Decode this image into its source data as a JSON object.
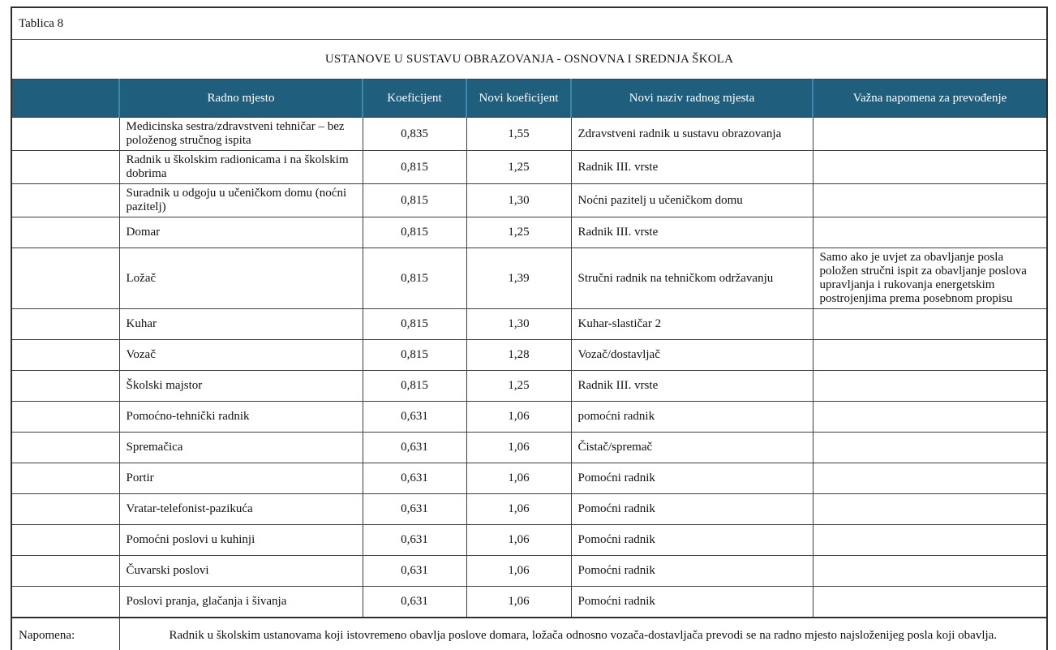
{
  "page": {
    "caption": "Tablica 8",
    "title": "USTANOVE U SUSTAVU OBRAZOVANJA - OSNOVNA I SREDNJA ŠKOLA"
  },
  "colors": {
    "header_bg": "#205e7e",
    "header_divider": "#3f86ad",
    "header_text": "#ffffff",
    "grid_border": "#3e3e3e",
    "outer_border": "#2e2e2e"
  },
  "table": {
    "columns": [
      {
        "key": "rb",
        "label": ""
      },
      {
        "key": "radno-mjesto",
        "label": "Radno mjesto"
      },
      {
        "key": "koeficijent",
        "label": "Koeficijent"
      },
      {
        "key": "novi-koeficijent",
        "label": "Novi koeficijent"
      },
      {
        "key": "novi-naziv",
        "label": "Novi naziv radnog mjesta"
      },
      {
        "key": "vazna-napomena",
        "label": "Važna napomena za prevođenje"
      }
    ],
    "rows": [
      {
        "radno_mjesto": "Medicinska sestra/zdravstveni tehničar – bez položenog stručnog ispita",
        "koeficijent": "0,835",
        "novi_koeficijent": "1,55",
        "novi_naziv": "Zdravstveni radnik u sustavu obrazovanja",
        "napomena": "",
        "naziv_valign": "middle"
      },
      {
        "radno_mjesto": "Radnik u školskim radionicama i na školskim dobrima",
        "koeficijent": "0,815",
        "novi_koeficijent": "1,25",
        "novi_naziv": "Radnik III. vrste",
        "napomena": "",
        "naziv_valign": "bottom"
      },
      {
        "radno_mjesto": "Suradnik u odgoju u učeničkom domu (noćni pazitelj)",
        "koeficijent": "0,815",
        "novi_koeficijent": "1,30",
        "novi_naziv": "Noćni pazitelj u učeničkom domu",
        "napomena": "",
        "naziv_valign": "middle"
      },
      {
        "radno_mjesto": "Domar",
        "koeficijent": "0,815",
        "novi_koeficijent": "1,25",
        "novi_naziv": "Radnik III. vrste",
        "napomena": "",
        "naziv_valign": "bottom"
      },
      {
        "radno_mjesto": "Ložač",
        "koeficijent": "0,815",
        "novi_koeficijent": "1,39",
        "novi_naziv": "Stručni radnik na tehničkom održavanju",
        "napomena": "Samo ako je uvjet za obavljanje posla položen stručni ispit za obavljanje poslova upravljanja i rukovanja energetskim postrojenjima prema posebnom propisu",
        "naziv_valign": "middle"
      },
      {
        "radno_mjesto": "Kuhar",
        "koeficijent": "0,815",
        "novi_koeficijent": "1,30",
        "novi_naziv": "Kuhar-slastičar 2",
        "napomena": "",
        "naziv_valign": "middle"
      },
      {
        "radno_mjesto": "Vozač",
        "koeficijent": "0,815",
        "novi_koeficijent": "1,28",
        "novi_naziv": "Vozač/dostavljač",
        "napomena": "",
        "naziv_valign": "middle"
      },
      {
        "radno_mjesto": "Školski majstor",
        "koeficijent": "0,815",
        "novi_koeficijent": "1,25",
        "novi_naziv": "Radnik III. vrste",
        "napomena": "",
        "naziv_valign": "bottom"
      },
      {
        "radno_mjesto": "Pomoćno-tehnički radnik",
        "koeficijent": "0,631",
        "novi_koeficijent": "1,06",
        "novi_naziv": "pomoćni radnik",
        "napomena": "",
        "naziv_valign": "middle"
      },
      {
        "radno_mjesto": "Spremačica",
        "koeficijent": "0,631",
        "novi_koeficijent": "1,06",
        "novi_naziv": "Čistač/spremač",
        "napomena": "",
        "naziv_valign": "middle"
      },
      {
        "radno_mjesto": "Portir",
        "koeficijent": "0,631",
        "novi_koeficijent": "1,06",
        "novi_naziv": "Pomoćni radnik",
        "napomena": "",
        "naziv_valign": "middle"
      },
      {
        "radno_mjesto": "Vratar-telefonist-pazikuća",
        "koeficijent": "0,631",
        "novi_koeficijent": "1,06",
        "novi_naziv": "Pomoćni radnik",
        "napomena": "",
        "naziv_valign": "middle"
      },
      {
        "radno_mjesto": "Pomoćni poslovi u kuhinji",
        "koeficijent": "0,631",
        "novi_koeficijent": "1,06",
        "novi_naziv": "Pomoćni radnik",
        "napomena": "",
        "naziv_valign": "middle"
      },
      {
        "radno_mjesto": "Čuvarski poslovi",
        "koeficijent": "0,631",
        "novi_koeficijent": "1,06",
        "novi_naziv": "Pomoćni radnik",
        "napomena": "",
        "naziv_valign": "middle"
      },
      {
        "radno_mjesto": "Poslovi pranja, glačanja i šivanja",
        "koeficijent": "0,631",
        "novi_koeficijent": "1,06",
        "novi_naziv": "Pomoćni radnik",
        "napomena": "",
        "naziv_valign": "middle"
      }
    ]
  },
  "footer": {
    "label": "Napomena:",
    "text": "Radnik u školskim ustanovama koji istovremeno obavlja poslove domara, ložača odnosno vozača-dostavljača prevodi se na radno mjesto najsloženijeg posla koji obavlja."
  }
}
